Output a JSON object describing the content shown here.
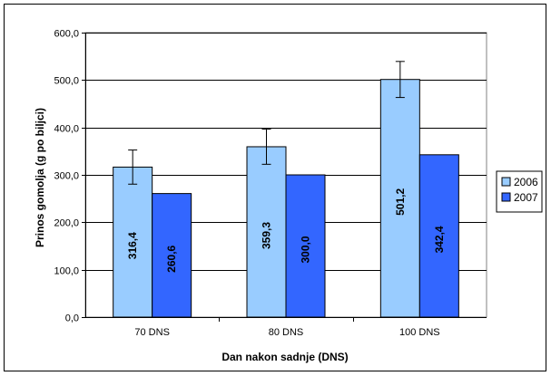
{
  "chart_data": {
    "type": "bar",
    "categories": [
      "70 DNS",
      "80 DNS",
      "100 DNS"
    ],
    "series": [
      {
        "name": "2006",
        "values": [
          316.4,
          359.3,
          501.2
        ],
        "labels": [
          "316,4",
          "359,3",
          "501,2"
        ],
        "error": [
          36,
          37,
          38
        ],
        "color": "#99CCFF"
      },
      {
        "name": "2007",
        "values": [
          260.6,
          300.0,
          342.4
        ],
        "labels": [
          "260,6",
          "300,0",
          "342,4"
        ],
        "color": "#3366FF"
      }
    ],
    "xlabel": "Dan nakon sadnje (DNS)",
    "ylabel": "Prinos gomolja (g po biljci)",
    "ylim": [
      0,
      600
    ],
    "yticks": [
      0,
      100,
      200,
      300,
      400,
      500,
      600
    ],
    "ytick_labels": [
      "0,0",
      "100,0",
      "200,0",
      "300,0",
      "400,0",
      "500,0",
      "600,0"
    ],
    "grid": true,
    "legend": "right",
    "colors": {
      "plot_background": "#FFFFFF",
      "plot_border": "#808080",
      "grid": "#000000",
      "bar_border": "#000000"
    }
  }
}
